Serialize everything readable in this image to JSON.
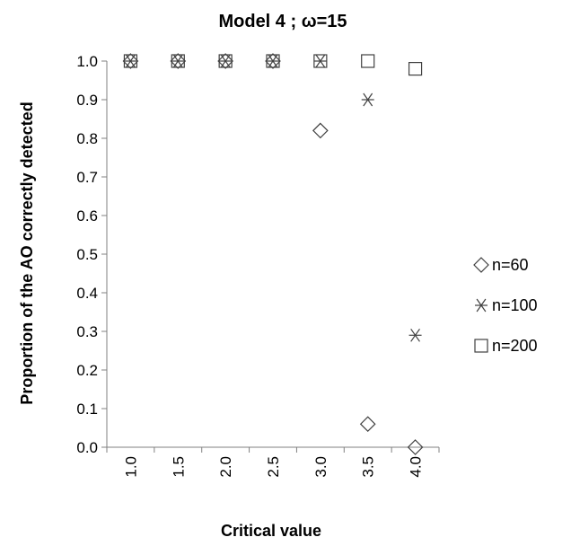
{
  "chart_data": {
    "type": "scatter",
    "title": "Model 4 ; ω=15",
    "xlabel": "Critical value",
    "ylabel": "Proportion of the AO correctly detected",
    "categories": [
      "1.0",
      "1.5",
      "2.0",
      "2.5",
      "3.0",
      "3.5",
      "4.0"
    ],
    "ylim": [
      0.0,
      1.0
    ],
    "yticks": [
      "0.0",
      "0.1",
      "0.2",
      "0.3",
      "0.4",
      "0.5",
      "0.6",
      "0.7",
      "0.8",
      "0.9",
      "1.0"
    ],
    "grid": false,
    "legend_position": "right",
    "series": [
      {
        "name": "n=60",
        "marker": "diamond",
        "values": [
          1.0,
          1.0,
          1.0,
          1.0,
          0.82,
          0.06,
          0.0
        ]
      },
      {
        "name": "n=100",
        "marker": "asterisk",
        "values": [
          1.0,
          1.0,
          1.0,
          1.0,
          1.0,
          0.9,
          0.29
        ]
      },
      {
        "name": "n=200",
        "marker": "square",
        "values": [
          1.0,
          1.0,
          1.0,
          1.0,
          1.0,
          1.0,
          0.98
        ]
      }
    ],
    "colors": {
      "marker": "#404040",
      "axis": "#808080",
      "text": "#000000"
    }
  }
}
